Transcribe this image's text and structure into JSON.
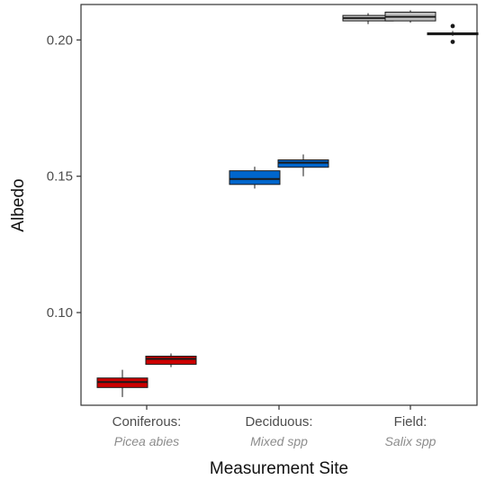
{
  "chart_data": {
    "type": "boxplot",
    "title": "",
    "xlabel": "Measurement Site",
    "ylabel": "Albedo",
    "ylim": [
      0.066,
      0.213
    ],
    "yticks": [
      0.1,
      0.15,
      0.2
    ],
    "ytick_labels": [
      "0.10",
      "0.15",
      "0.20"
    ],
    "grid": false,
    "legend": "none",
    "categories": [
      {
        "name": "Coniferous:",
        "subtitle": "Picea abies"
      },
      {
        "name": "Deciduous:",
        "subtitle": "Mixed spp"
      },
      {
        "name": "Field:",
        "subtitle": "Salix spp"
      }
    ],
    "colors": {
      "coniferous": "#cc0000",
      "deciduous": "#0066cc",
      "field": "#bfbfbf",
      "outline": "#1a1a1a"
    },
    "boxes": [
      {
        "category": 0,
        "slot": 0,
        "color": "#cc0000",
        "whisker_low": 0.069,
        "q1": 0.0725,
        "median": 0.0745,
        "q3": 0.076,
        "whisker_high": 0.079,
        "outliers": []
      },
      {
        "category": 0,
        "slot": 1,
        "color": "#cc0000",
        "whisker_low": 0.08,
        "q1": 0.081,
        "median": 0.083,
        "q3": 0.084,
        "whisker_high": 0.085,
        "outliers": []
      },
      {
        "category": 1,
        "slot": 0,
        "color": "#0066cc",
        "whisker_low": 0.1455,
        "q1": 0.147,
        "median": 0.149,
        "q3": 0.152,
        "whisker_high": 0.1535,
        "outliers": []
      },
      {
        "category": 1,
        "slot": 1,
        "color": "#0066cc",
        "whisker_low": 0.15,
        "q1": 0.1533,
        "median": 0.155,
        "q3": 0.156,
        "whisker_high": 0.158,
        "outliers": []
      },
      {
        "category": 2,
        "slot": 0,
        "color": "#bfbfbf",
        "whisker_low": 0.2058,
        "q1": 0.207,
        "median": 0.208,
        "q3": 0.209,
        "whisker_high": 0.2098,
        "outliers": []
      },
      {
        "category": 2,
        "slot": 1,
        "color": "#bfbfbf",
        "whisker_low": 0.2063,
        "q1": 0.207,
        "median": 0.2085,
        "q3": 0.2102,
        "whisker_high": 0.2109,
        "outliers": []
      },
      {
        "category": 2,
        "slot": 2,
        "color": "#bfbfbf",
        "whisker_low": 0.2015,
        "q1": 0.2019,
        "median": 0.2023,
        "q3": 0.2026,
        "whisker_high": 0.2033,
        "outliers": [
          0.2051,
          0.1993
        ]
      }
    ]
  }
}
